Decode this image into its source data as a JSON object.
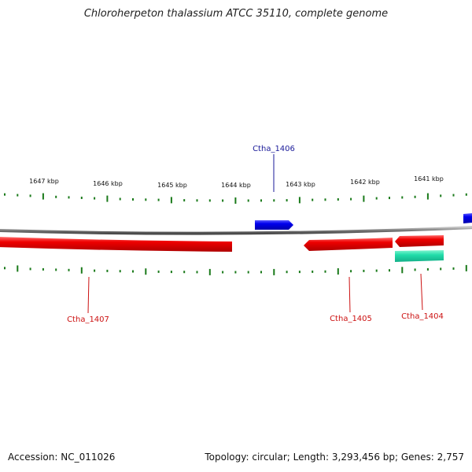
{
  "title": "Chloroherpeton thalassium ATCC 35110, complete genome",
  "accession_text": "Accession: NC_011026",
  "summary_text": "Topology: circular; Length: 3,293,456 bp; Genes: 2,757",
  "scale": {
    "tick_labels": [
      "1647 kbp",
      "1646 kbp",
      "1645 kbp",
      "1644 kbp",
      "1643 kbp",
      "1642 kbp",
      "1641 kbp"
    ]
  },
  "genes": [
    {
      "name": "Ctha_1406",
      "strand": "+",
      "color": "#0000ee",
      "label_color": "#1a1a99"
    },
    {
      "name": "Ctha_1407",
      "strand": "-",
      "color": "#ee0000",
      "label_color": "#cc1111"
    },
    {
      "name": "Ctha_1405",
      "strand": "-",
      "color": "#ee0000",
      "label_color": "#cc1111"
    },
    {
      "name": "Ctha_1404",
      "strand": "-",
      "color": "#ee0000",
      "label_color": "#cc1111"
    }
  ],
  "colors": {
    "backbone": "#8a8a8a",
    "ticks": "#1a7a1a",
    "forward_gene": "#0000ee",
    "reverse_gene": "#ee0000",
    "feature_cyan": "#22ddaa"
  }
}
